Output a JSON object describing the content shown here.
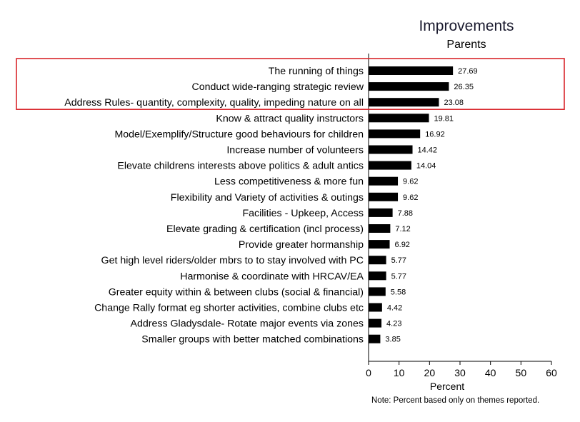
{
  "chart_data": {
    "type": "bar",
    "orientation": "horizontal",
    "title": "Improvements",
    "subtitle": "Parents",
    "xlabel": "Percent",
    "note": "Note: Percent based only on themes reported.",
    "xlim": [
      0,
      60
    ],
    "xticks": [
      0,
      10,
      20,
      30,
      40,
      50,
      60
    ],
    "grid": false,
    "bar_color": "#000000",
    "highlight_color": "#d9262b",
    "highlight_categories": [
      "The running of things",
      "Conduct wide-ranging strategic review",
      "Address Rules- quantity, complexity, quality, impeding nature on all"
    ],
    "categories": [
      "The running of things",
      "Conduct wide-ranging strategic review",
      "Address Rules- quantity, complexity, quality, impeding nature on all",
      "Know & attract quality instructors",
      "Model/Exemplify/Structure good behaviours for children",
      "Increase number of volunteers",
      "Elevate childrens interests above politics & adult antics",
      "Less competitiveness & more fun",
      "Flexibility and Variety of activities & outings",
      "Facilities - Upkeep, Access",
      "Elevate grading & certification (incl process)",
      "Provide greater hormanship",
      "Get high level riders/older mbrs to to stay involved with PC",
      "Harmonise & coordinate with HRCAV/EA",
      "Greater equity within & between clubs (social & financial)",
      "Change Rally format eg shorter activities, combine clubs etc",
      "Address Gladysdale- Rotate major events via zones",
      "Smaller groups with better matched combinations"
    ],
    "values": [
      27.69,
      26.35,
      23.08,
      19.81,
      16.92,
      14.42,
      14.04,
      9.62,
      9.62,
      7.88,
      7.12,
      6.92,
      5.77,
      5.77,
      5.58,
      4.42,
      4.23,
      3.85
    ],
    "value_labels": [
      "27.69",
      "26.35",
      "23.08",
      "19.81",
      "16.92",
      "14.42",
      "14.04",
      "9.62",
      "9.62",
      "7.88",
      "7.12",
      "6.92",
      "5.77",
      "5.77",
      "5.58",
      "4.42",
      "4.23",
      "3.85"
    ]
  }
}
